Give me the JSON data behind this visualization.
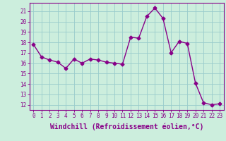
{
  "x": [
    0,
    1,
    2,
    3,
    4,
    5,
    6,
    7,
    8,
    9,
    10,
    11,
    12,
    13,
    14,
    15,
    16,
    17,
    18,
    19,
    20,
    21,
    22,
    23
  ],
  "y": [
    17.8,
    16.6,
    16.3,
    16.1,
    15.5,
    16.4,
    16.0,
    16.4,
    16.3,
    16.1,
    16.0,
    15.9,
    18.5,
    18.4,
    20.5,
    21.3,
    20.3,
    17.0,
    18.1,
    17.9,
    14.1,
    12.2,
    12.0,
    12.1
  ],
  "line_color": "#880088",
  "marker": "D",
  "markersize": 2.5,
  "linewidth": 1.0,
  "bg_color": "#cceedd",
  "grid_color": "#99cccc",
  "xlabel": "Windchill (Refroidissement éolien,°C)",
  "ylim": [
    11.5,
    21.8
  ],
  "xlim": [
    -0.5,
    23.5
  ],
  "yticks": [
    12,
    13,
    14,
    15,
    16,
    17,
    18,
    19,
    20,
    21
  ],
  "xticks": [
    0,
    1,
    2,
    3,
    4,
    5,
    6,
    7,
    8,
    9,
    10,
    11,
    12,
    13,
    14,
    15,
    16,
    17,
    18,
    19,
    20,
    21,
    22,
    23
  ],
  "tick_color": "#880088",
  "tick_fontsize": 5.5,
  "xlabel_fontsize": 7.0,
  "spine_color": "#880088",
  "axis_bg": "#cceedd"
}
